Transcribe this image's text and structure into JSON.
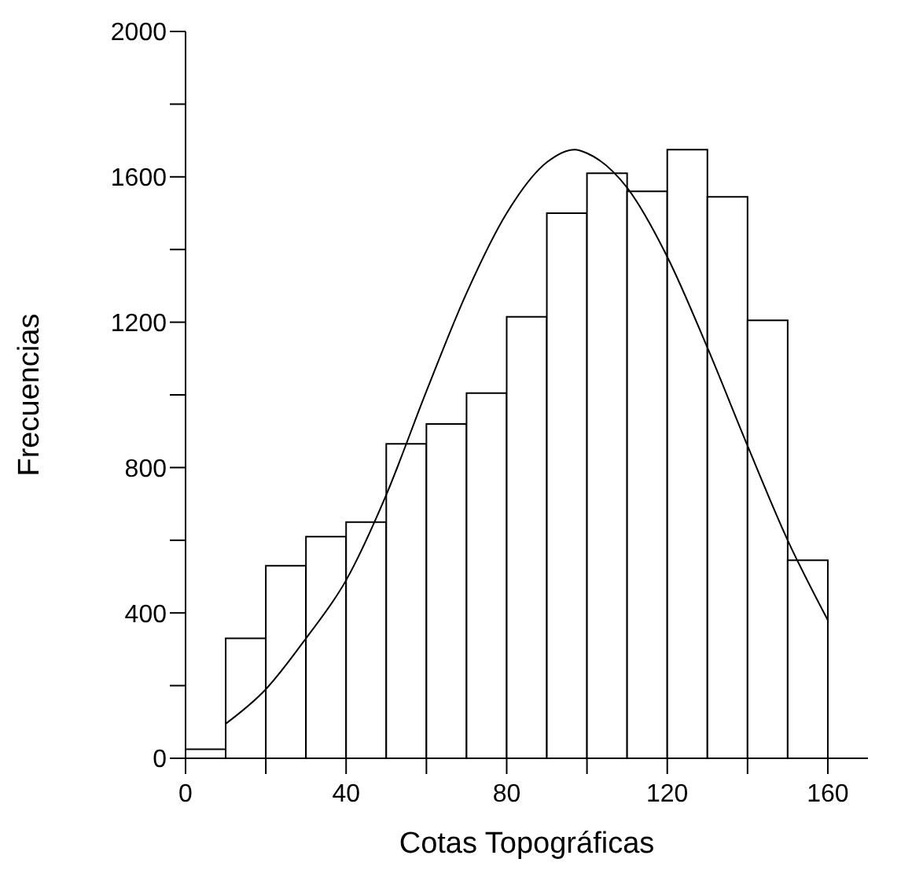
{
  "chart_data": {
    "type": "histogram",
    "xlabel": "Cotas Topográficas",
    "ylabel": "Frecuencias",
    "bins": [
      0,
      10,
      20,
      30,
      40,
      50,
      60,
      70,
      80,
      90,
      100,
      110,
      120,
      130,
      140,
      150,
      160
    ],
    "values": [
      25,
      330,
      530,
      610,
      650,
      865,
      920,
      1005,
      1215,
      1500,
      1610,
      1560,
      1675,
      1545,
      1205,
      545
    ],
    "color": "#ffffff",
    "series": [
      {
        "type": "line",
        "color": "#000000",
        "x": [
          10,
          20,
          30,
          40,
          50,
          60,
          70,
          80,
          90,
          97,
          100,
          110,
          120,
          130,
          140,
          150,
          160
        ],
        "values": [
          95,
          190,
          330,
          490,
          725,
          1010,
          1280,
          1500,
          1640,
          1675,
          1665,
          1570,
          1380,
          1130,
          860,
          600,
          380
        ]
      }
    ],
    "xlim": [
      0,
      170
    ],
    "xticks": [
      0,
      {
        "value": 20,
        "label": null
      },
      40,
      {
        "value": 60,
        "label": null
      },
      80,
      {
        "value": 100,
        "label": null
      },
      120,
      {
        "value": 140,
        "label": null
      },
      160
    ],
    "ylim": [
      0,
      2000
    ],
    "yticks": [
      0,
      {
        "value": 200,
        "label": null
      },
      400,
      {
        "value": 600,
        "label": null
      },
      800,
      {
        "value": 1000,
        "label": null
      },
      1200,
      {
        "value": 1400,
        "label": null
      },
      1600,
      {
        "value": 1800,
        "label": null
      },
      2000
    ],
    "grid": false,
    "legend": false,
    "marker": "none",
    "line_style": "solid"
  }
}
